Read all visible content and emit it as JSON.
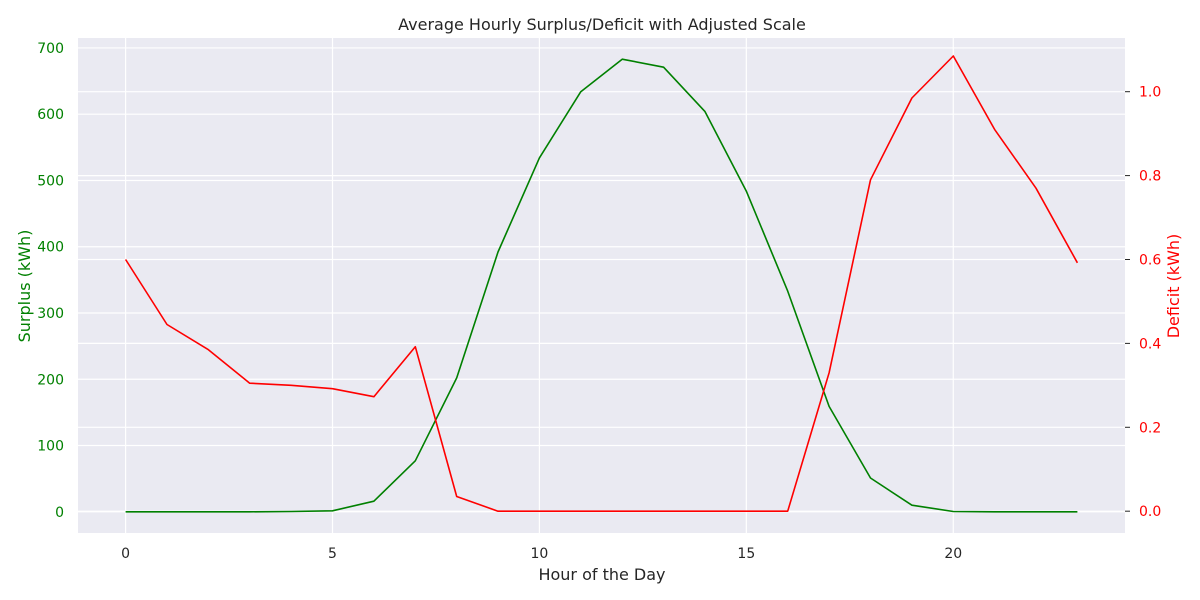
{
  "chart_data": {
    "type": "line",
    "title": "Average Hourly Surplus/Deficit with Adjusted Scale",
    "xlabel": "Hour of the Day",
    "ylabel_left": "Surplus (kWh)",
    "ylabel_right": "Deficit (kWh)",
    "grid": true,
    "legend": "none",
    "xlim": [
      -1.15,
      24.15
    ],
    "ylim_left": [
      -32,
      715
    ],
    "ylim_right": [
      -0.052,
      1.128
    ],
    "xticks": [
      0,
      5,
      10,
      15,
      20
    ],
    "yticks_left": [
      0,
      100,
      200,
      300,
      400,
      500,
      600,
      700
    ],
    "yticks_right": [
      0.0,
      0.2,
      0.4,
      0.6,
      0.8,
      1.0
    ],
    "x": [
      0,
      1,
      2,
      3,
      4,
      5,
      6,
      7,
      8,
      9,
      10,
      11,
      12,
      13,
      14,
      15,
      16,
      17,
      18,
      19,
      20,
      21,
      22,
      23
    ],
    "series": [
      {
        "axis": "left",
        "color": "#008000",
        "values": [
          0,
          0,
          0,
          0,
          0.5,
          1.5,
          16,
          77,
          202,
          392,
          534,
          634,
          683,
          671,
          604,
          484,
          333,
          159,
          51,
          10,
          0.5,
          0,
          0,
          0
        ]
      },
      {
        "axis": "right",
        "color": "#ff0000",
        "values": [
          0.6,
          0.445,
          0.385,
          0.305,
          0.3,
          0.292,
          0.273,
          0.392,
          0.035,
          0.0,
          0.0,
          0.0,
          0.0,
          0.0,
          0.0,
          0.0,
          0.0,
          0.33,
          0.79,
          0.985,
          1.085,
          0.91,
          0.77,
          0.592
        ]
      }
    ],
    "colors": {
      "plot_background": "#eaeaf2",
      "grid": "#ffffff",
      "text": "#262626",
      "left_axis": "#008000",
      "right_axis": "#ff0000"
    }
  }
}
